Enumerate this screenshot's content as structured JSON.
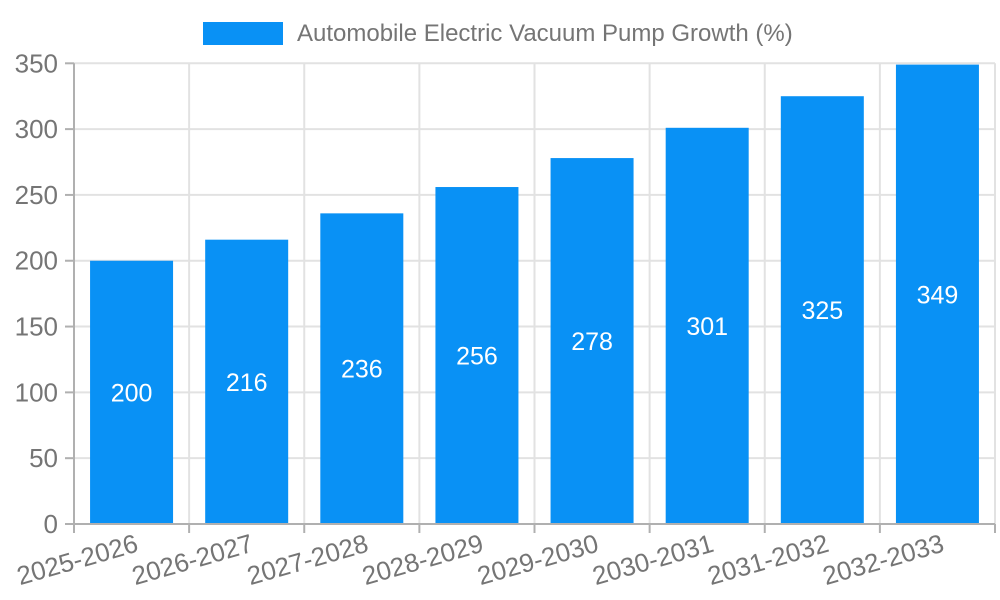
{
  "legend": {
    "label": "Automobile Electric Vacuum Pump Growth (%)"
  },
  "chart_data": {
    "type": "bar",
    "title": "Automobile Electric Vacuum Pump Growth (%)",
    "categories": [
      "2025-2026",
      "2026-2027",
      "2027-2028",
      "2028-2029",
      "2029-2030",
      "2030-2031",
      "2031-2032",
      "2032-2033"
    ],
    "values": [
      200,
      216,
      236,
      256,
      278,
      301,
      325,
      349
    ],
    "xlabel": "",
    "ylabel": "",
    "ylim": [
      0,
      350
    ],
    "yticks": [
      0,
      50,
      100,
      150,
      200,
      250,
      300,
      350
    ],
    "grid": true,
    "legend_position": "top",
    "colors": {
      "bar": "#0991F5",
      "bar_value_label": "#ffffff",
      "grid_line": "#e2e2e2",
      "axis_line": "#b0b0b0",
      "axis_text": "#757575"
    }
  }
}
